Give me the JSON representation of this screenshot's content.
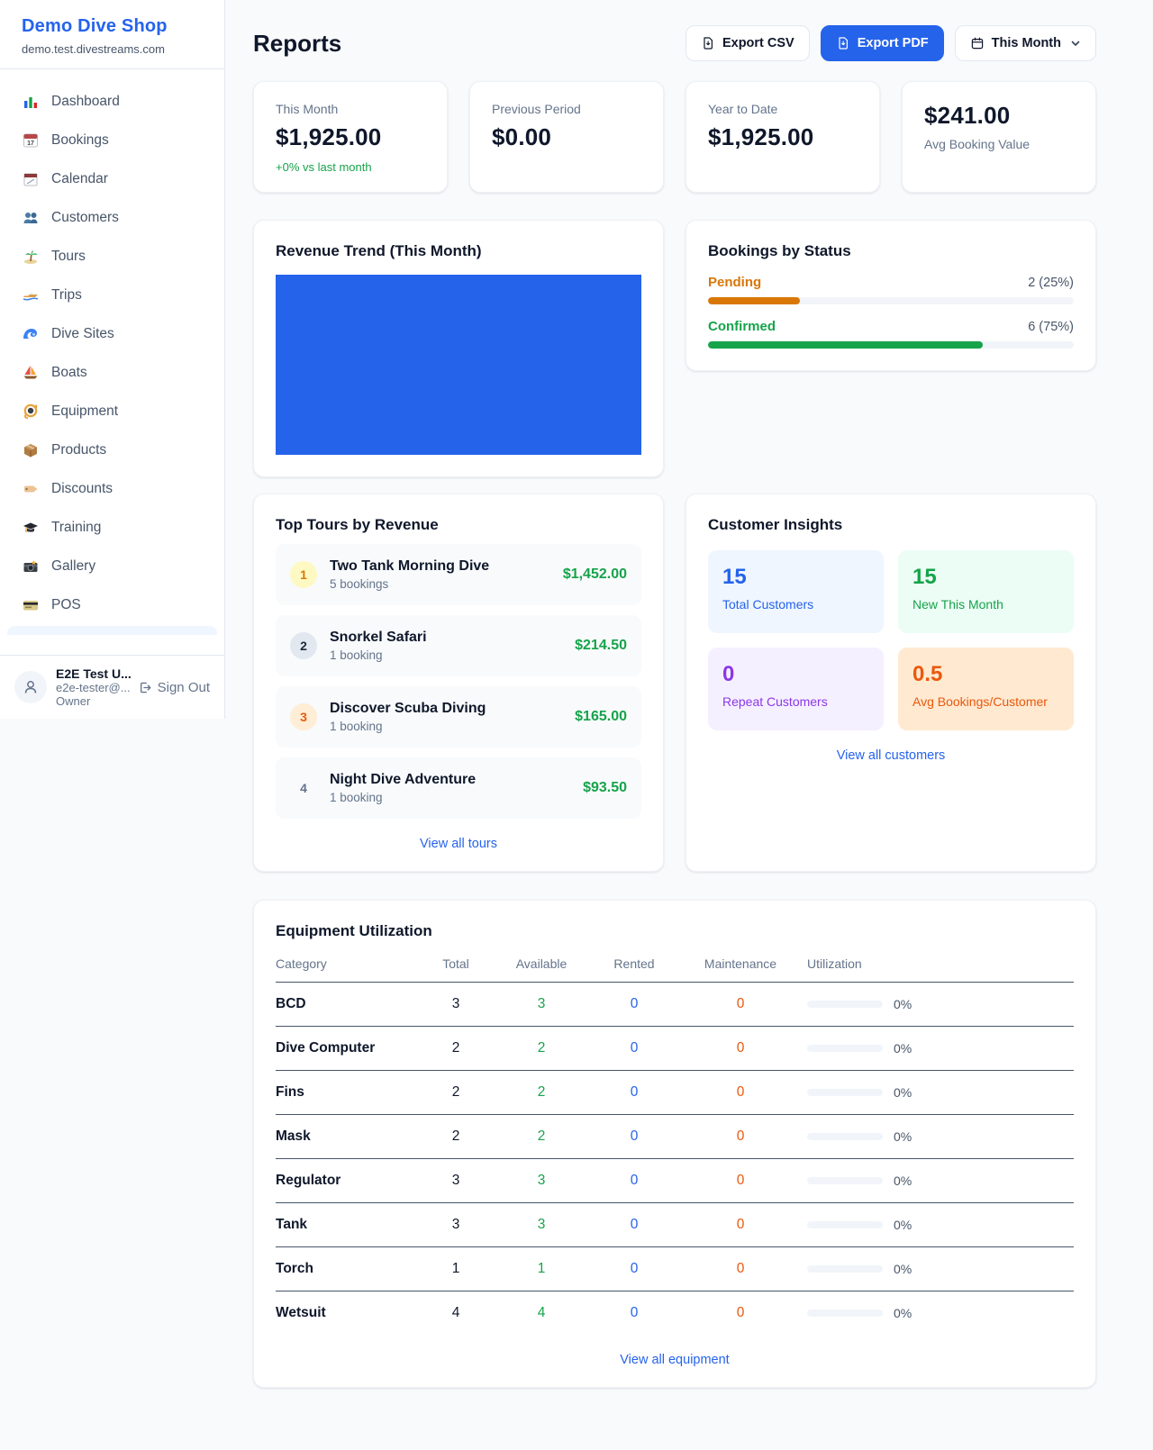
{
  "colors": {
    "accent": "#2563eb",
    "green": "#16a34a",
    "pending_orange": "#d97706",
    "maintenance_orange": "#ea580c",
    "purple": "#8b37e8"
  },
  "sidebar": {
    "shop_name": "Demo Dive Shop",
    "domain": "demo.test.divestreams.com",
    "items": [
      {
        "label": "Dashboard",
        "icon": "bar-chart"
      },
      {
        "label": "Bookings",
        "icon": "calendar-date"
      },
      {
        "label": "Calendar",
        "icon": "calendar-pad"
      },
      {
        "label": "Customers",
        "icon": "people"
      },
      {
        "label": "Tours",
        "icon": "island"
      },
      {
        "label": "Trips",
        "icon": "speedboat"
      },
      {
        "label": "Dive Sites",
        "icon": "wave"
      },
      {
        "label": "Boats",
        "icon": "sailboat"
      },
      {
        "label": "Equipment",
        "icon": "dive-mask"
      },
      {
        "label": "Products",
        "icon": "package"
      },
      {
        "label": "Discounts",
        "icon": "tag"
      },
      {
        "label": "Training",
        "icon": "graduation-cap"
      },
      {
        "label": "Gallery",
        "icon": "camera"
      },
      {
        "label": "POS",
        "icon": "credit-card"
      }
    ],
    "user": {
      "name": "E2E Test U...",
      "email": "e2e-tester@...",
      "role": "Owner",
      "sign_out_label": "Sign Out"
    }
  },
  "header": {
    "title": "Reports",
    "export_csv_label": "Export CSV",
    "export_pdf_label": "Export PDF",
    "period_selected": "This Month"
  },
  "stats": [
    {
      "label": "This Month",
      "value": "$1,925.00",
      "sub": "+0% vs last month"
    },
    {
      "label": "Previous Period",
      "value": "$0.00"
    },
    {
      "label": "Year to Date",
      "value": "$1,925.00"
    },
    {
      "label": "Avg Booking Value",
      "value": "$241.00"
    }
  ],
  "revenue_trend": {
    "title": "Revenue Trend (This Month)"
  },
  "bookings_by_status": {
    "title": "Bookings by Status",
    "rows": [
      {
        "label": "Pending",
        "value": "2 (25%)",
        "pct": 25
      },
      {
        "label": "Confirmed",
        "value": "6 (75%)",
        "pct": 75
      }
    ]
  },
  "top_tours": {
    "title": "Top Tours by Revenue",
    "link": "View all tours",
    "rows": [
      {
        "rank": "1",
        "name": "Two Tank Morning Dive",
        "bookings": "5 bookings",
        "revenue": "$1,452.00"
      },
      {
        "rank": "2",
        "name": "Snorkel Safari",
        "bookings": "1 booking",
        "revenue": "$214.50"
      },
      {
        "rank": "3",
        "name": "Discover Scuba Diving",
        "bookings": "1 booking",
        "revenue": "$165.00"
      },
      {
        "rank": "4",
        "name": "Night Dive Adventure",
        "bookings": "1 booking",
        "revenue": "$93.50"
      }
    ]
  },
  "customer_insights": {
    "title": "Customer Insights",
    "link": "View all customers",
    "tiles": [
      {
        "value": "15",
        "label": "Total Customers"
      },
      {
        "value": "15",
        "label": "New This Month"
      },
      {
        "value": "0",
        "label": "Repeat Customers"
      },
      {
        "value": "0.5",
        "label": "Avg Bookings/Customer"
      }
    ]
  },
  "equipment": {
    "title": "Equipment Utilization",
    "link": "View all equipment",
    "columns": [
      "Category",
      "Total",
      "Available",
      "Rented",
      "Maintenance",
      "Utilization"
    ],
    "rows": [
      {
        "category": "BCD",
        "total": "3",
        "available": "3",
        "rented": "0",
        "maintenance": "0",
        "utilization": "0%",
        "pct": 0
      },
      {
        "category": "Dive Computer",
        "total": "2",
        "available": "2",
        "rented": "0",
        "maintenance": "0",
        "utilization": "0%",
        "pct": 0
      },
      {
        "category": "Fins",
        "total": "2",
        "available": "2",
        "rented": "0",
        "maintenance": "0",
        "utilization": "0%",
        "pct": 0
      },
      {
        "category": "Mask",
        "total": "2",
        "available": "2",
        "rented": "0",
        "maintenance": "0",
        "utilization": "0%",
        "pct": 0
      },
      {
        "category": "Regulator",
        "total": "3",
        "available": "3",
        "rented": "0",
        "maintenance": "0",
        "utilization": "0%",
        "pct": 0
      },
      {
        "category": "Tank",
        "total": "3",
        "available": "3",
        "rented": "0",
        "maintenance": "0",
        "utilization": "0%",
        "pct": 0
      },
      {
        "category": "Torch",
        "total": "1",
        "available": "1",
        "rented": "0",
        "maintenance": "0",
        "utilization": "0%",
        "pct": 0
      },
      {
        "category": "Wetsuit",
        "total": "4",
        "available": "4",
        "rented": "0",
        "maintenance": "0",
        "utilization": "0%",
        "pct": 0
      }
    ]
  }
}
